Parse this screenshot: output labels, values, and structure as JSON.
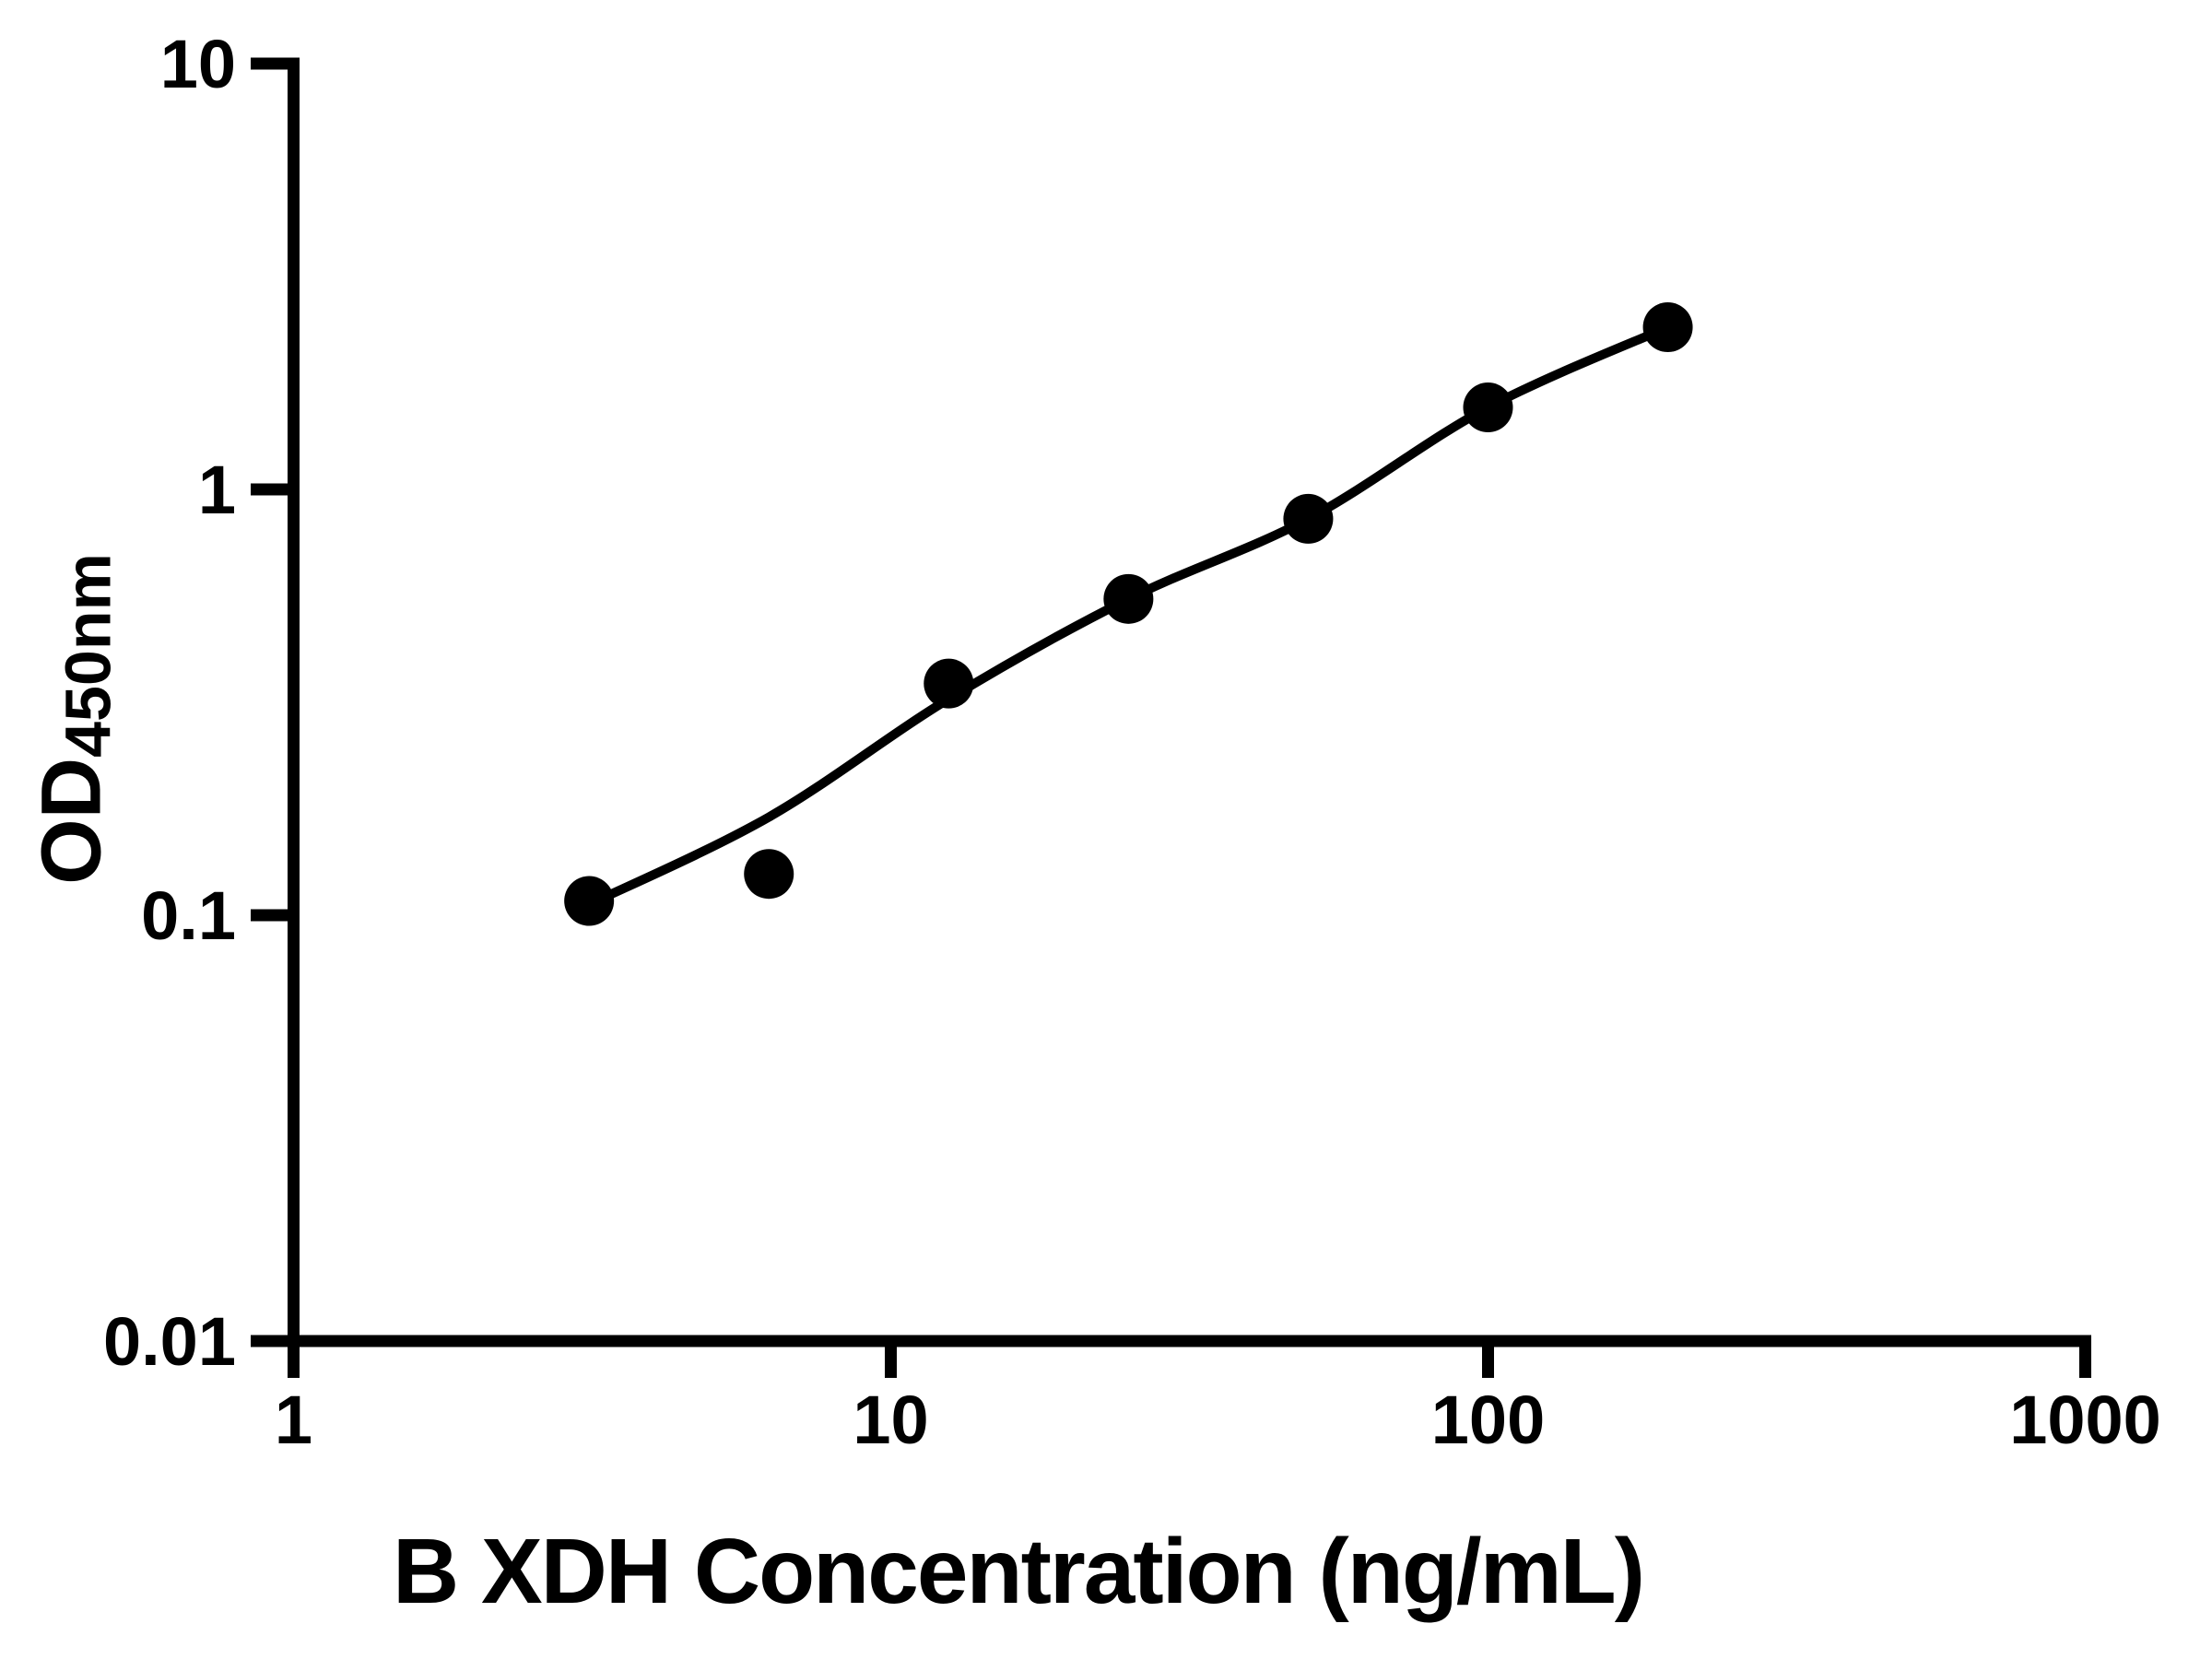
{
  "figure": {
    "background_color": "#ffffff",
    "foreground_color": "#000000"
  },
  "chart_data": {
    "type": "scatter",
    "title": "",
    "xlabel": "B XDH Concentration (ng/mL)",
    "ylabel": {
      "text": "OD",
      "subscript": "450nm"
    },
    "x_scale": "log",
    "y_scale": "log",
    "xlim": [
      1,
      1000
    ],
    "ylim": [
      0.01,
      10
    ],
    "grid": false,
    "legend": false,
    "x_ticks": [
      {
        "value": 1,
        "label": "1"
      },
      {
        "value": 10,
        "label": "10"
      },
      {
        "value": 100,
        "label": "100"
      },
      {
        "value": 1000,
        "label": "1000"
      }
    ],
    "y_ticks": [
      {
        "value": 10,
        "label": "10"
      },
      {
        "value": 1,
        "label": "1"
      },
      {
        "value": 0.1,
        "label": "0.1"
      },
      {
        "value": 0.01,
        "label": "0.01"
      }
    ],
    "series": [
      {
        "name": "standard-points",
        "marker": "circle",
        "color": "#000000",
        "x": [
          3.125,
          6.25,
          12.5,
          25,
          50,
          100,
          200
        ],
        "y": [
          0.108,
          0.125,
          0.35,
          0.553,
          0.853,
          1.558,
          2.404
        ]
      }
    ],
    "fit_curve": {
      "name": "4pl-fit-curve",
      "color": "#000000",
      "x": [
        3.125,
        6.25,
        12.5,
        25,
        50,
        100,
        200
      ],
      "y": [
        0.106,
        0.17,
        0.322,
        0.553,
        0.853,
        1.558,
        2.404
      ]
    }
  }
}
